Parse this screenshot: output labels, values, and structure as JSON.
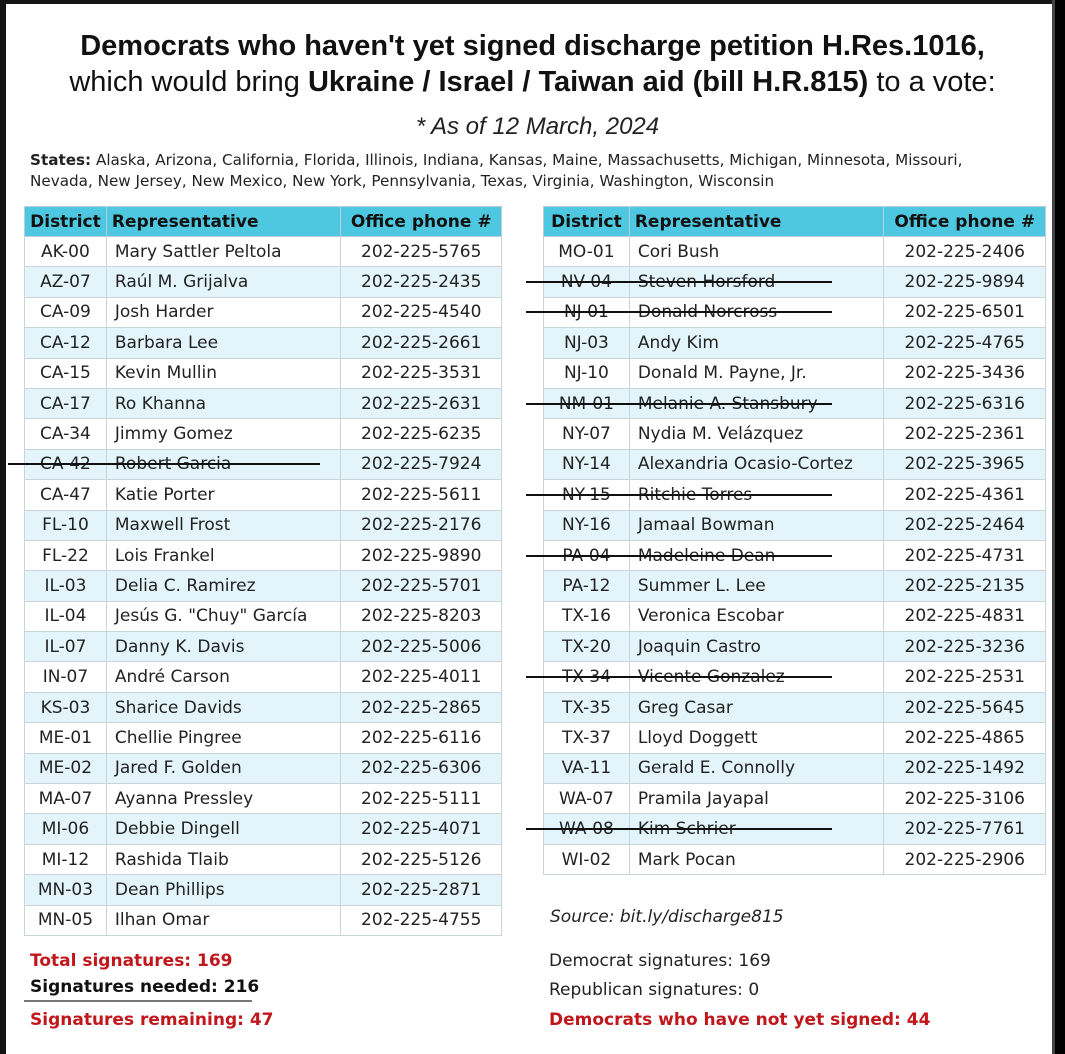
{
  "title": {
    "line1": "Democrats who haven't yet signed discharge petition H.Res.1016,",
    "line2_pre": "which would bring ",
    "line2_bold": "Ukraine / Israel / Taiwan aid (bill H.R.815)",
    "line2_post": " to a vote:",
    "asof": "* As of 12 March, 2024"
  },
  "states": {
    "label": "States:",
    "list": "Alaska, Arizona, California, Florida, Illinois, Indiana, Kansas, Maine, Massachusetts, Michigan, Minnesota, Missouri, Nevada, New Jersey, New Mexico, New York, Pennsylvania, Texas, Virginia, Washington, Wisconsin"
  },
  "headers": {
    "district": "District",
    "representative": "Representative",
    "phone": "Office phone #"
  },
  "left_table": [
    {
      "district": "AK-00",
      "name": "Mary Sattler Peltola",
      "phone": "202-225-5765",
      "struck": false
    },
    {
      "district": "AZ-07",
      "name": "Raúl M. Grijalva",
      "phone": "202-225-2435",
      "struck": false
    },
    {
      "district": "CA-09",
      "name": "Josh Harder",
      "phone": "202-225-4540",
      "struck": false
    },
    {
      "district": "CA-12",
      "name": "Barbara Lee",
      "phone": "202-225-2661",
      "struck": false
    },
    {
      "district": "CA-15",
      "name": "Kevin Mullin",
      "phone": "202-225-3531",
      "struck": false
    },
    {
      "district": "CA-17",
      "name": "Ro Khanna",
      "phone": "202-225-2631",
      "struck": false
    },
    {
      "district": "CA-34",
      "name": "Jimmy Gomez",
      "phone": "202-225-6235",
      "struck": false
    },
    {
      "district": "CA-42",
      "name": "Robert Garcia",
      "phone": "202-225-7924",
      "struck": true
    },
    {
      "district": "CA-47",
      "name": "Katie Porter",
      "phone": "202-225-5611",
      "struck": false
    },
    {
      "district": "FL-10",
      "name": "Maxwell Frost",
      "phone": "202-225-2176",
      "struck": false
    },
    {
      "district": "FL-22",
      "name": "Lois Frankel",
      "phone": "202-225-9890",
      "struck": false
    },
    {
      "district": "IL-03",
      "name": "Delia C. Ramirez",
      "phone": "202-225-5701",
      "struck": false
    },
    {
      "district": "IL-04",
      "name": "Jesús G. \"Chuy\" García",
      "phone": "202-225-8203",
      "struck": false
    },
    {
      "district": "IL-07",
      "name": "Danny K. Davis",
      "phone": "202-225-5006",
      "struck": false
    },
    {
      "district": "IN-07",
      "name": "André Carson",
      "phone": "202-225-4011",
      "struck": false
    },
    {
      "district": "KS-03",
      "name": "Sharice Davids",
      "phone": "202-225-2865",
      "struck": false
    },
    {
      "district": "ME-01",
      "name": "Chellie Pingree",
      "phone": "202-225-6116",
      "struck": false
    },
    {
      "district": "ME-02",
      "name": "Jared F. Golden",
      "phone": "202-225-6306",
      "struck": false
    },
    {
      "district": "MA-07",
      "name": "Ayanna Pressley",
      "phone": "202-225-5111",
      "struck": false
    },
    {
      "district": "MI-06",
      "name": "Debbie Dingell",
      "phone": "202-225-4071",
      "struck": false
    },
    {
      "district": "MI-12",
      "name": "Rashida Tlaib",
      "phone": "202-225-5126",
      "struck": false
    },
    {
      "district": "MN-03",
      "name": "Dean Phillips",
      "phone": "202-225-2871",
      "struck": false
    },
    {
      "district": "MN-05",
      "name": "Ilhan Omar",
      "phone": "202-225-4755",
      "struck": false
    }
  ],
  "right_table": [
    {
      "district": "MO-01",
      "name": "Cori Bush",
      "phone": "202-225-2406",
      "struck": false
    },
    {
      "district": "NV-04",
      "name": "Steven Horsford",
      "phone": "202-225-9894",
      "struck": true
    },
    {
      "district": "NJ-01",
      "name": "Donald Norcross",
      "phone": "202-225-6501",
      "struck": true
    },
    {
      "district": "NJ-03",
      "name": "Andy Kim",
      "phone": "202-225-4765",
      "struck": false
    },
    {
      "district": "NJ-10",
      "name": "Donald M. Payne, Jr.",
      "phone": "202-225-3436",
      "struck": false
    },
    {
      "district": "NM-01",
      "name": "Melanie A. Stansbury",
      "phone": "202-225-6316",
      "struck": true
    },
    {
      "district": "NY-07",
      "name": "Nydia M. Velázquez",
      "phone": "202-225-2361",
      "struck": false
    },
    {
      "district": "NY-14",
      "name": "Alexandria Ocasio-Cortez",
      "phone": "202-225-3965",
      "struck": false
    },
    {
      "district": "NY-15",
      "name": "Ritchie Torres",
      "phone": "202-225-4361",
      "struck": true
    },
    {
      "district": "NY-16",
      "name": "Jamaal Bowman",
      "phone": "202-225-2464",
      "struck": false
    },
    {
      "district": "PA-04",
      "name": "Madeleine Dean",
      "phone": "202-225-4731",
      "struck": true
    },
    {
      "district": "PA-12",
      "name": "Summer L. Lee",
      "phone": "202-225-2135",
      "struck": false
    },
    {
      "district": "TX-16",
      "name": "Veronica Escobar",
      "phone": "202-225-4831",
      "struck": false
    },
    {
      "district": "TX-20",
      "name": "Joaquin Castro",
      "phone": "202-225-3236",
      "struck": false
    },
    {
      "district": "TX-34",
      "name": "Vicente Gonzalez",
      "phone": "202-225-2531",
      "struck": true
    },
    {
      "district": "TX-35",
      "name": "Greg Casar",
      "phone": "202-225-5645",
      "struck": false
    },
    {
      "district": "TX-37",
      "name": "Lloyd Doggett",
      "phone": "202-225-4865",
      "struck": false
    },
    {
      "district": "VA-11",
      "name": "Gerald E. Connolly",
      "phone": "202-225-1492",
      "struck": false
    },
    {
      "district": "WA-07",
      "name": "Pramila Jayapal",
      "phone": "202-225-3106",
      "struck": false
    },
    {
      "district": "WA-08",
      "name": "Kim Schrier",
      "phone": "202-225-7761",
      "struck": true
    },
    {
      "district": "WI-02",
      "name": "Mark Pocan",
      "phone": "202-225-2906",
      "struck": false
    }
  ],
  "source": "Source:  bit.ly/discharge815",
  "totals": {
    "total_label": "Total signatures:  169",
    "needed_label": "Signatures needed:  216",
    "remaining_label": "Signatures remaining:  47"
  },
  "party_counts": {
    "dem_label": "Democrat signatures:  169",
    "rep_label": "Republican signatures:  0",
    "not_signed_label": "Democrats who have not yet signed: 44"
  },
  "colors": {
    "header_bg": "#4dc8e0",
    "alt_row": "#e3f5fa",
    "accent_red": "#c0171c"
  }
}
